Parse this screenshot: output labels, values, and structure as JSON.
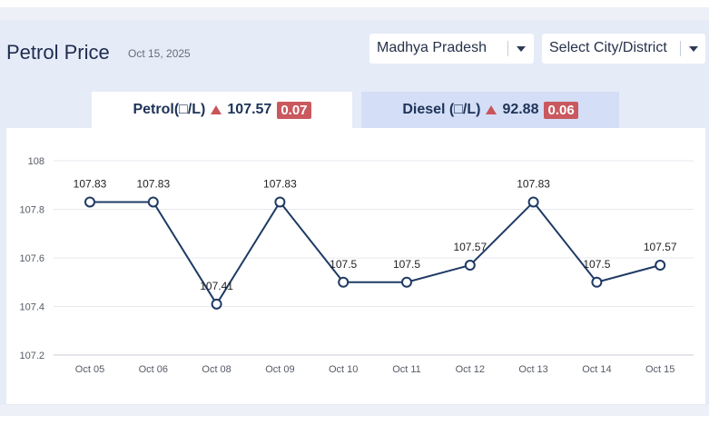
{
  "header": {
    "title": "Petrol Price",
    "date": "Oct 15, 2025"
  },
  "filters": {
    "state_selected": "Madhya Pradesh",
    "city_selected": "Select City/District"
  },
  "tabs": [
    {
      "label": "Petrol(□/L)",
      "price": "107.57",
      "change": "0.07",
      "direction": "up"
    },
    {
      "label": "Diesel (□/L)",
      "price": "92.88",
      "change": "0.06",
      "direction": "up"
    }
  ],
  "colors": {
    "line": "#1f3a64",
    "badge": "#c9595e",
    "active_tab": "#ffffff",
    "inactive_tab": "#d4def6"
  },
  "chart_data": {
    "type": "line",
    "categories": [
      "Oct 05",
      "Oct 06",
      "Oct 08",
      "Oct 09",
      "Oct 10",
      "Oct 11",
      "Oct 12",
      "Oct 13",
      "Oct 14",
      "Oct 15"
    ],
    "series": [
      {
        "values": [
          107.83,
          107.83,
          107.41,
          107.83,
          107.5,
          107.5,
          107.57,
          107.83,
          107.5,
          107.57
        ]
      }
    ],
    "data_labels": [
      "107.83",
      "107.83",
      "107.41",
      "107.83",
      "107.5",
      "107.5",
      "107.57",
      "107.83",
      "107.5",
      "107.57"
    ],
    "y_ticks": [
      "107.2",
      "107.4",
      "107.6",
      "107.8",
      "108"
    ],
    "ylim": [
      107.2,
      108
    ],
    "grid": true,
    "legend": "none"
  }
}
